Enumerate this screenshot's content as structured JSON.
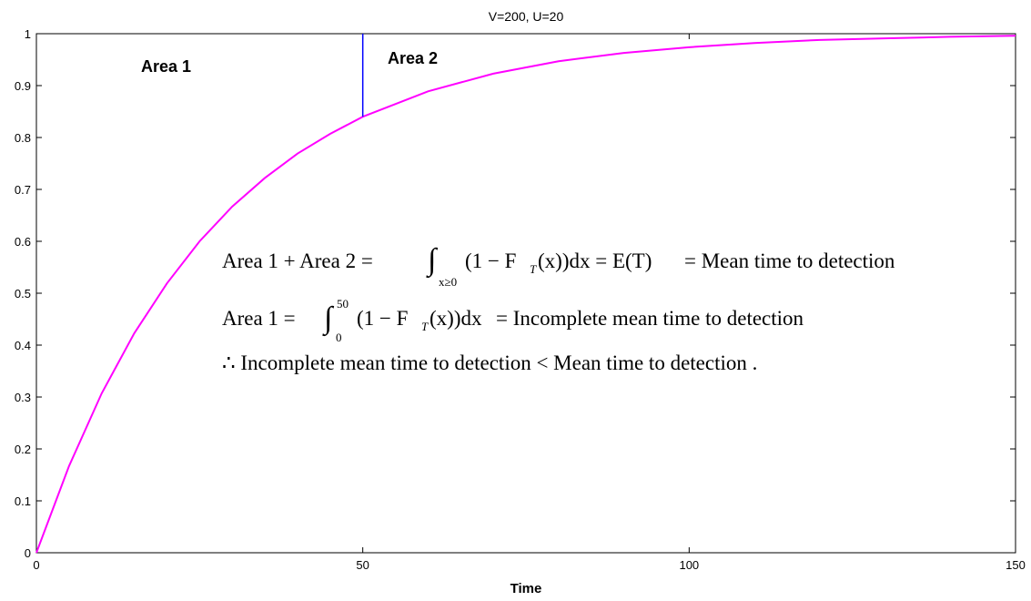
{
  "chart_data": {
    "type": "line",
    "title": "V=200, U=20",
    "xlabel": "Time",
    "ylabel": "",
    "xlim": [
      0,
      150
    ],
    "ylim": [
      0,
      1
    ],
    "x_ticks": [
      "0",
      "50",
      "100",
      "150"
    ],
    "y_ticks": [
      "0",
      "0.1",
      "0.2",
      "0.3",
      "0.4",
      "0.5",
      "0.6",
      "0.7",
      "0.8",
      "0.9",
      "1"
    ],
    "grid": false,
    "legend": "none",
    "series": [
      {
        "color": "#ff00ff",
        "function": "1 - exp(-x/27.3)",
        "x": [
          0,
          5,
          10,
          15,
          20,
          25,
          30,
          35,
          40,
          45,
          50,
          60,
          70,
          80,
          90,
          100,
          110,
          120,
          130,
          140,
          150
        ],
        "y": [
          0,
          0.167,
          0.307,
          0.423,
          0.519,
          0.6,
          0.667,
          0.722,
          0.769,
          0.807,
          0.84,
          0.889,
          0.923,
          0.947,
          0.963,
          0.974,
          0.982,
          0.988,
          0.991,
          0.994,
          0.996
        ]
      }
    ],
    "vertical_marker": {
      "x": 50,
      "y_from": 0.84,
      "y_to": 1,
      "color": "#0000ff"
    },
    "annotations": {
      "area1": "Area 1",
      "area2": "Area 2",
      "eq1": {
        "lhs": "Area 1  +  Area 2  =",
        "integral_sub": "x≥0",
        "integrand": "(1 − F",
        "f_sub": "T",
        "after_f": "(x))dx = E(T)",
        "rhs": "= Mean time to detection"
      },
      "eq2": {
        "lhs": "Area 1  =",
        "integral_sup": "50",
        "integral_sub": "0",
        "integrand": "(1 − F",
        "f_sub": "T",
        "after_f": "(x))dx",
        "rhs": "=  Incomplete mean time to detection"
      },
      "eq3": "∴  Incomplete mean time to detection  <  Mean time to detection ."
    }
  }
}
